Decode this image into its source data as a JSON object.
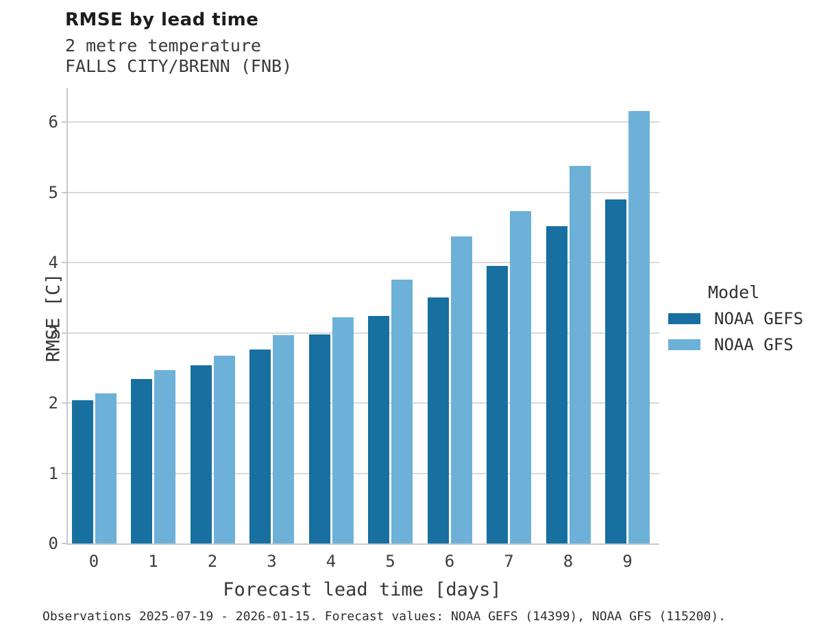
{
  "header": {
    "title": "RMSE by lead time",
    "subtitle_variable": "2 metre temperature",
    "subtitle_station": "FALLS CITY/BRENN (FNB)"
  },
  "chart_data": {
    "type": "bar",
    "title": "RMSE by lead time",
    "subtitle": "2 metre temperature — FALLS CITY/BRENN (FNB)",
    "categories": [
      "0",
      "1",
      "2",
      "3",
      "4",
      "5",
      "6",
      "7",
      "8",
      "9"
    ],
    "series": [
      {
        "name": "NOAA GEFS",
        "color": "#17709f",
        "values": [
          2.04,
          2.34,
          2.54,
          2.76,
          2.98,
          3.24,
          3.5,
          3.95,
          4.52,
          4.9
        ]
      },
      {
        "name": "NOAA GFS",
        "color": "#6db1d8",
        "values": [
          2.14,
          2.47,
          2.67,
          2.97,
          3.22,
          3.76,
          4.37,
          4.73,
          5.38,
          6.16
        ]
      }
    ],
    "xlabel": "Forecast lead time [days]",
    "ylabel": "RMSE [C]",
    "ylim": [
      0,
      6.49
    ],
    "yticks": [
      0,
      1,
      2,
      3,
      4,
      5,
      6
    ],
    "grid": true,
    "legend_title": "Model",
    "legend_position": "right of plot, middle"
  },
  "legend": {
    "title": "Model",
    "items": [
      {
        "label": "NOAA GEFS",
        "color": "#17709f"
      },
      {
        "label": "NOAA GFS",
        "color": "#6db1d8"
      }
    ]
  },
  "footer": {
    "text": "Observations 2025-07-19 - 2026-01-15. Forecast values: NOAA GEFS (14399), NOAA GFS (115200)."
  }
}
